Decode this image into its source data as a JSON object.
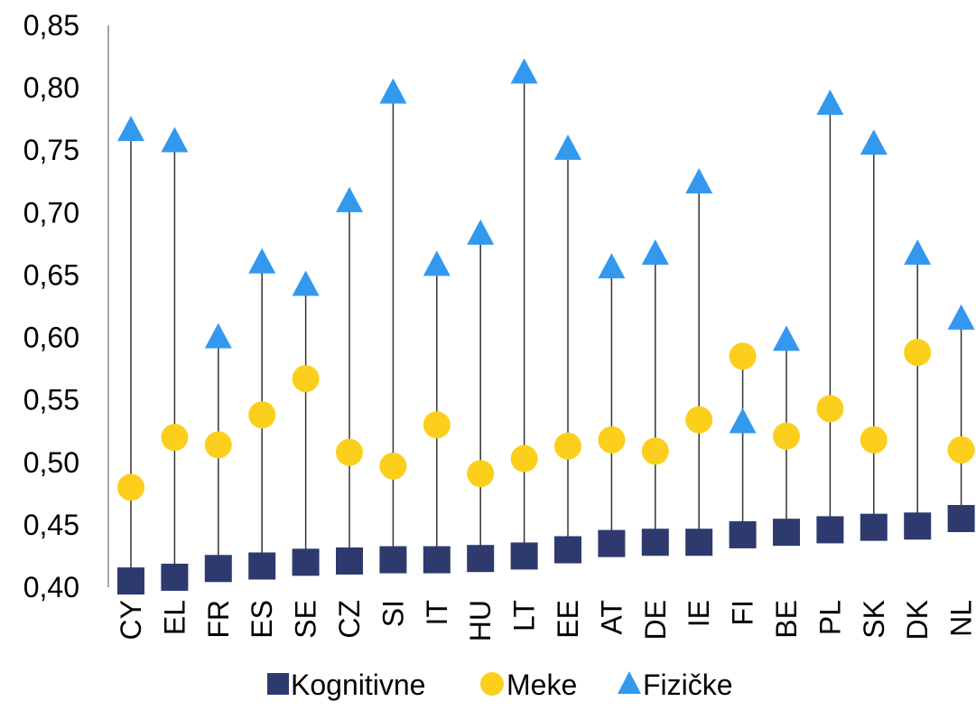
{
  "chart_data": {
    "type": "scatter",
    "title": "",
    "xlabel": "",
    "ylabel": "",
    "categories": [
      "CY",
      "EL",
      "FR",
      "ES",
      "SE",
      "CZ",
      "SI",
      "IT",
      "HU",
      "LT",
      "EE",
      "AT",
      "DE",
      "IE",
      "FI",
      "BE",
      "PL",
      "SK",
      "DK",
      "NL"
    ],
    "ylim": [
      0.4,
      0.85
    ],
    "yticks": [
      "0,40",
      "0,45",
      "0,50",
      "0,55",
      "0,60",
      "0,65",
      "0,70",
      "0,75",
      "0,80",
      "0,85"
    ],
    "grid": false,
    "legend_position": "bottom",
    "series": [
      {
        "name": "Kognitivne",
        "marker": "square",
        "color": "#2e3a6e",
        "values": [
          0.405,
          0.408,
          0.415,
          0.417,
          0.42,
          0.421,
          0.422,
          0.422,
          0.423,
          0.425,
          0.43,
          0.435,
          0.436,
          0.436,
          0.442,
          0.444,
          0.446,
          0.448,
          0.449,
          0.455
        ]
      },
      {
        "name": "Meke",
        "marker": "circle",
        "color": "#fccf1c",
        "values": [
          0.48,
          0.52,
          0.514,
          0.538,
          0.567,
          0.508,
          0.497,
          0.53,
          0.491,
          0.503,
          0.513,
          0.518,
          0.509,
          0.534,
          0.585,
          0.521,
          0.543,
          0.518,
          0.588,
          0.51
        ]
      },
      {
        "name": "Fizičke",
        "marker": "triangle",
        "color": "#3399ee",
        "values": [
          0.766,
          0.757,
          0.6,
          0.66,
          0.642,
          0.709,
          0.796,
          0.658,
          0.683,
          0.812,
          0.751,
          0.656,
          0.667,
          0.724,
          0.532,
          0.598,
          0.787,
          0.755,
          0.667,
          0.615
        ]
      }
    ]
  }
}
